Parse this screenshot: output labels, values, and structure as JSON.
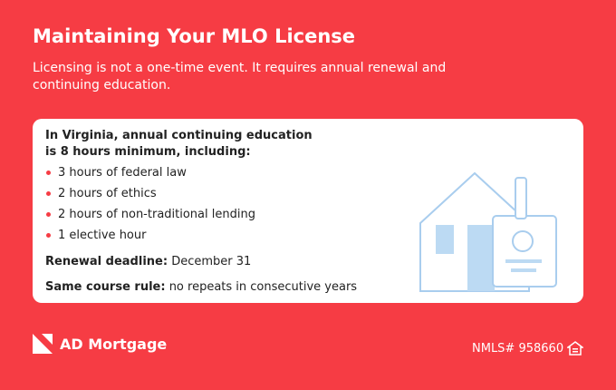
{
  "header": {
    "title": "Maintaining Your MLO License",
    "subtitle": "Licensing is not a one-time event. It requires annual renewal and continuing education."
  },
  "card": {
    "intro": "In Virginia, annual continuing education is 8 hours minimum, including:",
    "items": [
      "3 hours of federal law",
      "2 hours of ethics",
      "2 hours of non-traditional lending",
      "1 elective hour"
    ],
    "renewal": {
      "label": "Renewal deadline:",
      "value": "December 31"
    },
    "rule": {
      "label": "Same course rule:",
      "value": "no repeats in consecutive years"
    }
  },
  "footer": {
    "brand": "AD Mortgage",
    "nmls": "NMLS# 958660"
  }
}
